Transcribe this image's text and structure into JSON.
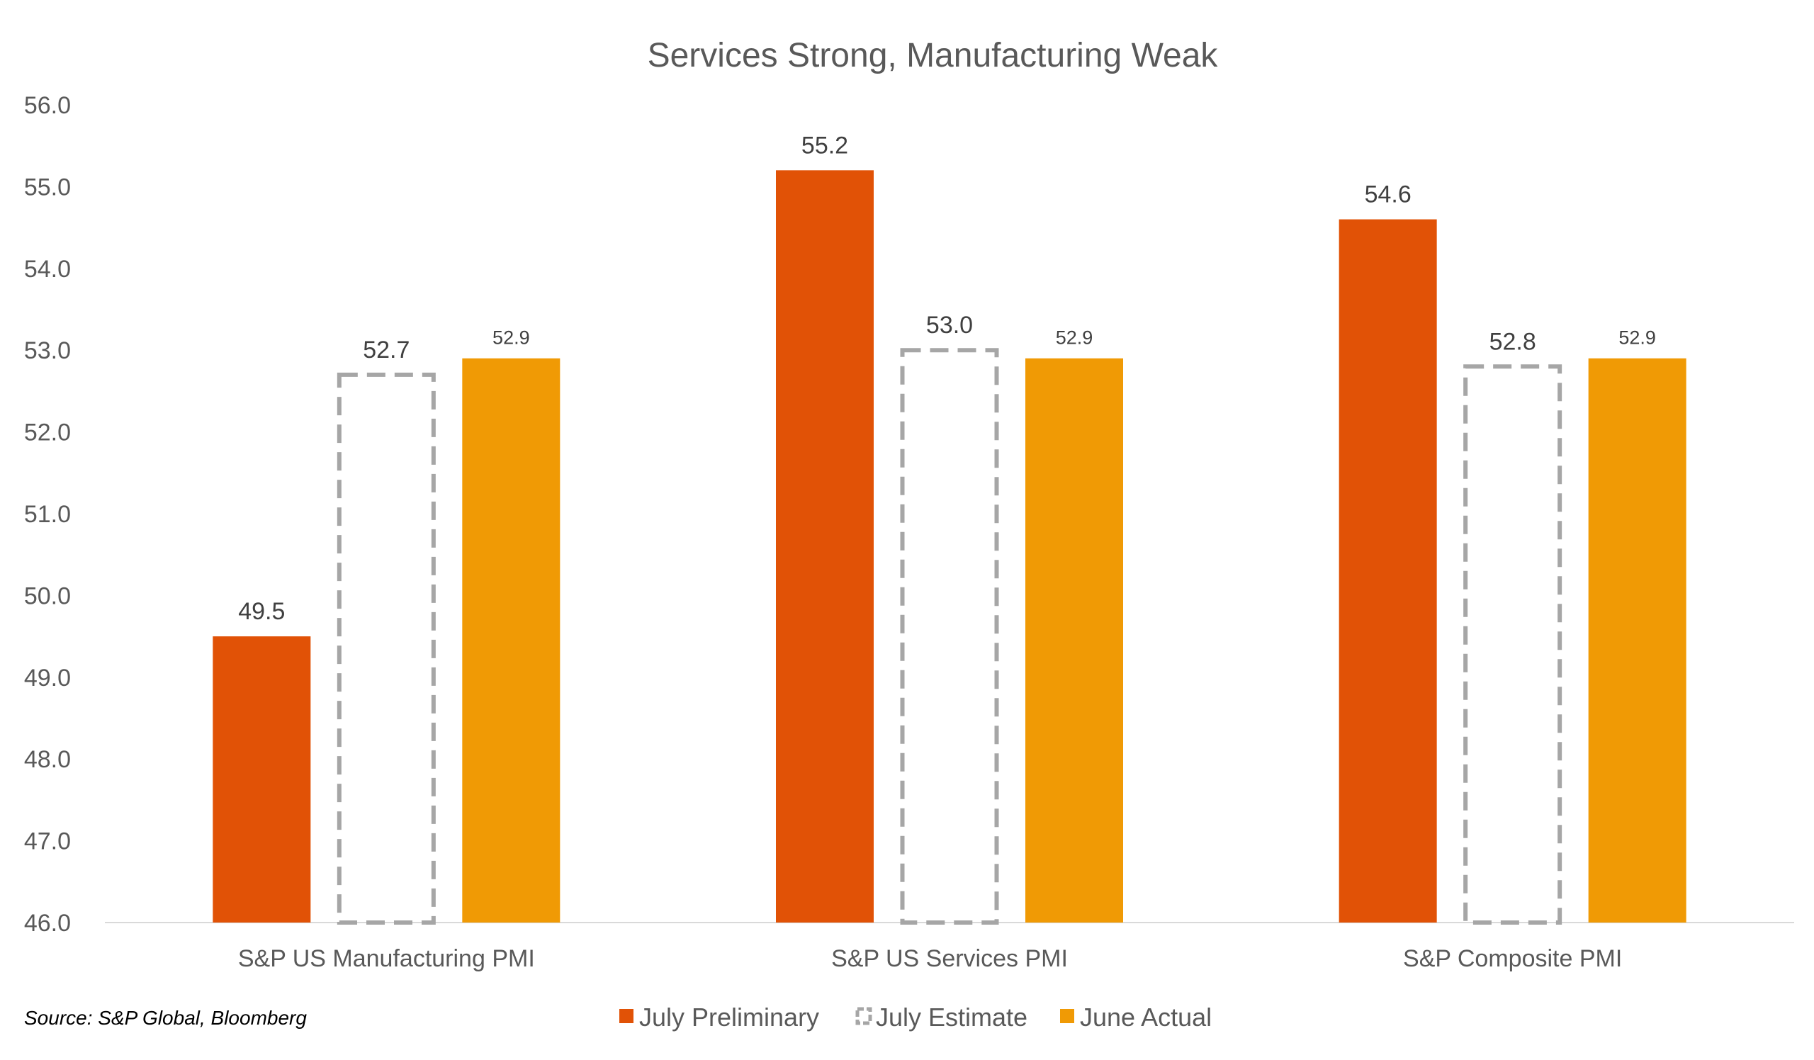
{
  "chart_data": {
    "type": "bar",
    "title": "Services Strong, Manufacturing Weak",
    "categories": [
      "S&P US Manufacturing PMI",
      "S&P US Services PMI",
      "S&P Composite PMI"
    ],
    "series": [
      {
        "name": "July Preliminary",
        "values": [
          49.5,
          55.2,
          54.6
        ],
        "labels": [
          "49.5",
          "55.2",
          "54.6"
        ],
        "color": "#E15206",
        "style": "solid"
      },
      {
        "name": "July Estimate",
        "values": [
          52.7,
          53.0,
          52.8
        ],
        "labels": [
          "52.7",
          "53.0",
          "52.8"
        ],
        "color": "#A6A6A6",
        "style": "dashed-outline"
      },
      {
        "name": "June Actual",
        "values": [
          52.9,
          52.9,
          52.9
        ],
        "labels": [
          "52.9",
          "52.9",
          "52.9"
        ],
        "color": "#F09A05",
        "style": "solid"
      }
    ],
    "ylim": [
      46.0,
      56.0
    ],
    "yticks": [
      "46.0",
      "47.0",
      "48.0",
      "49.0",
      "50.0",
      "51.0",
      "52.0",
      "53.0",
      "54.0",
      "55.0",
      "56.0"
    ],
    "grid": false,
    "legend_position": "bottom-center",
    "source_note": "Source: S&P Global, Bloomberg"
  }
}
